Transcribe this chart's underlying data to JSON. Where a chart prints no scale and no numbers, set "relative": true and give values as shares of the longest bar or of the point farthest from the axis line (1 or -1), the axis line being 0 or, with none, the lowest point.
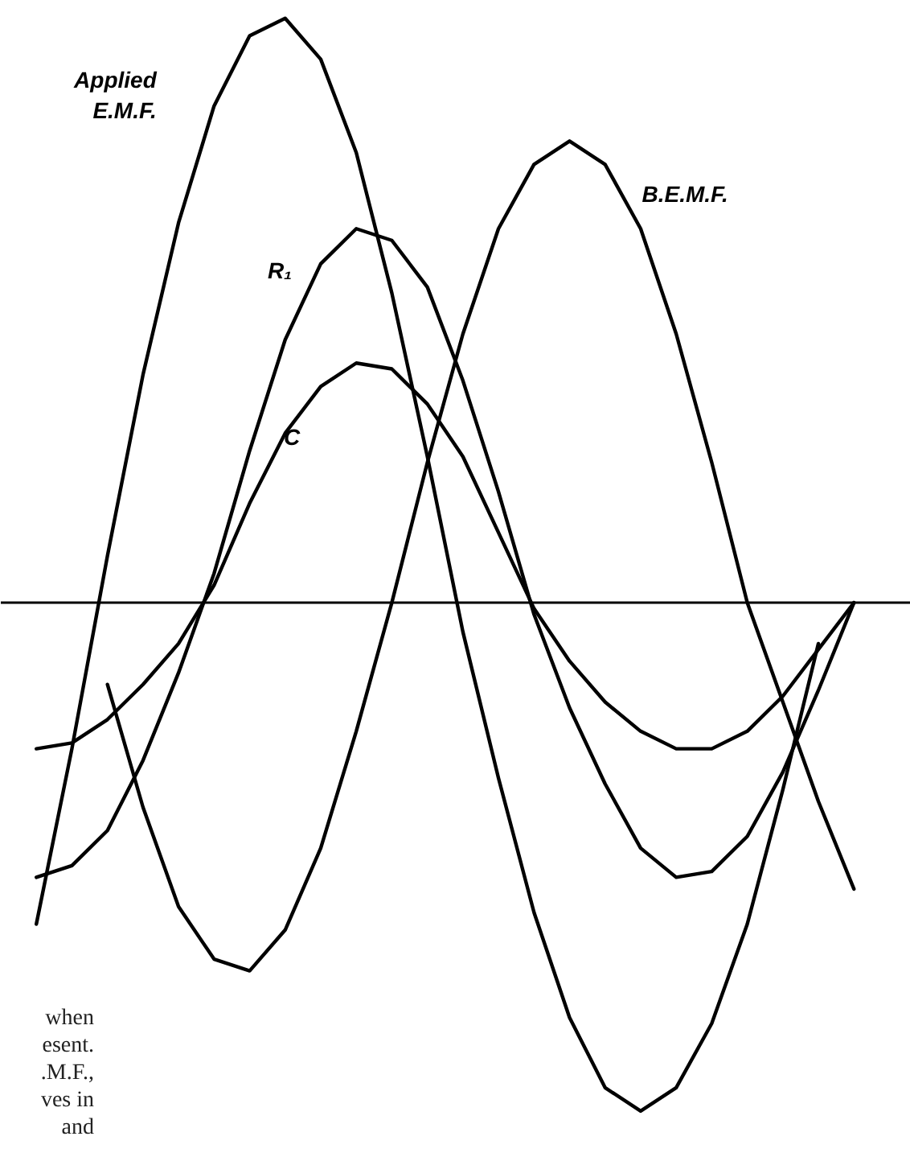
{
  "chart_data": {
    "type": "line",
    "relative": true,
    "categories": [
      null,
      null,
      null,
      null,
      null,
      null,
      null,
      null,
      null,
      null,
      null,
      null,
      null,
      null,
      null,
      null,
      null,
      null,
      null,
      null,
      null,
      null,
      null,
      null
    ],
    "series": [
      {
        "name": "Applied\nE.M.F.",
        "color": "#000000",
        "values": [
          -0.55,
          -0.25,
          0.08,
          0.39,
          0.65,
          0.85,
          0.97,
          1.0,
          0.93,
          0.77,
          0.53,
          0.25,
          -0.05,
          -0.3,
          -0.53,
          -0.71,
          -0.83,
          -0.87,
          -0.83,
          -0.72,
          -0.55,
          -0.32,
          -0.07,
          null
        ]
      },
      {
        "name": "B.E.M.F.",
        "color": "#000000",
        "values": [
          null,
          null,
          -0.14,
          -0.35,
          -0.52,
          -0.61,
          -0.63,
          -0.56,
          -0.42,
          -0.22,
          0.0,
          0.24,
          0.46,
          0.64,
          0.75,
          0.79,
          0.75,
          0.64,
          0.46,
          0.24,
          0.0,
          -0.17,
          -0.34,
          -0.49
        ]
      },
      {
        "name": "R₁",
        "color": "#000000",
        "values": [
          -0.47,
          -0.45,
          -0.39,
          -0.27,
          -0.12,
          0.05,
          0.26,
          0.45,
          0.58,
          0.64,
          0.62,
          0.54,
          0.38,
          0.19,
          -0.02,
          -0.18,
          -0.31,
          -0.42,
          -0.47,
          -0.46,
          -0.4,
          -0.29,
          -0.15,
          0.0
        ]
      },
      {
        "name": "C",
        "color": "#000000",
        "values": [
          -0.25,
          -0.24,
          -0.2,
          -0.14,
          -0.07,
          0.03,
          0.17,
          0.29,
          0.37,
          0.41,
          0.4,
          0.34,
          0.25,
          0.12,
          -0.01,
          -0.1,
          -0.17,
          -0.22,
          -0.25,
          -0.25,
          -0.22,
          -0.16,
          -0.08,
          0.0
        ]
      }
    ],
    "annotations": [
      "when",
      "esent.",
      ".M.F.,",
      "ves in",
      "and"
    ],
    "grid": false
  }
}
